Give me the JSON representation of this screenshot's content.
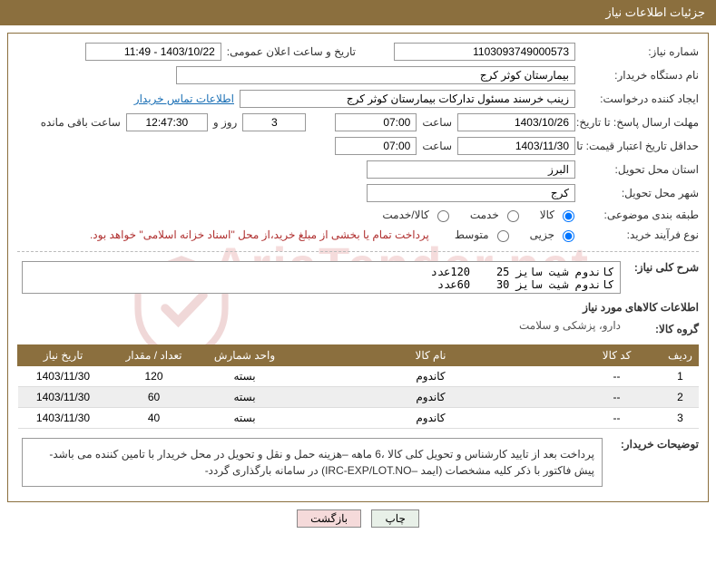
{
  "header": {
    "title": "جزئیات اطلاعات نیاز"
  },
  "fields": {
    "need_number_label": "شماره نیاز:",
    "need_number": "1103093749000573",
    "announce_label": "تاریخ و ساعت اعلان عمومی:",
    "announce_value": "1403/10/22 - 11:49",
    "buyer_org_label": "نام دستگاه خریدار:",
    "buyer_org": "بیمارستان کوثر کرج",
    "requester_label": "ایجاد کننده درخواست:",
    "requester": "زینب خرسند مسئول تدارکات بیمارستان کوثر کرج",
    "contact_link": "اطلاعات تماس خریدار",
    "deadline_send_label": "مهلت ارسال پاسخ: تا تاریخ:",
    "deadline_send_date": "1403/10/26",
    "time_label": "ساعت",
    "deadline_send_time": "07:00",
    "days_label_suffix": "روز و",
    "days_value": "3",
    "countdown": "12:47:30",
    "remaining_label": "ساعت باقی مانده",
    "validity_label": "حداقل تاریخ اعتبار قیمت: تا تاریخ:",
    "validity_date": "1403/11/30",
    "validity_time": "07:00",
    "province_label": "استان محل تحویل:",
    "province": "البرز",
    "city_label": "شهر محل تحویل:",
    "city": "کرج",
    "category_label": "طبقه بندی موضوعی:",
    "cat_goods": "کالا",
    "cat_service": "خدمت",
    "cat_both": "کالا/خدمت",
    "purchase_type_label": "نوع فرآیند خرید:",
    "pt_minor": "جزیی",
    "pt_medium": "متوسط",
    "payment_note": "پرداخت تمام یا بخشی از مبلغ خرید،از محل \"اسناد خزانه اسلامی\" خواهد بود.",
    "summary_label": "شرح کلی نیاز:",
    "summary_text": "کاندوم شیت سایز 25    120عدد\nکاندوم شیت سایز 30    60عدد",
    "items_section_title": "اطلاعات کالاهای مورد نیاز",
    "goods_group_label": "گروه کالا:",
    "goods_group": "دارو، پزشکی و سلامت",
    "buyer_notes_label": "توضیحات خریدار:",
    "buyer_notes": "پرداخت بعد از تایید کارشناس و تحویل کلی کالا ،6 ماهه –هزینه حمل و نقل و تحویل در محل خریدار با تامین کننده می باشد- پیش فاکتور با ذکر کلیه مشخصات (ایمد –IRC-EXP/LOT.NO) در سامانه بارگذاری گردد-"
  },
  "table": {
    "columns": [
      "ردیف",
      "کد کالا",
      "نام کالا",
      "واحد شمارش",
      "تعداد / مقدار",
      "تاریخ نیاز"
    ],
    "rows": [
      [
        "1",
        "--",
        "کاندوم",
        "بسته",
        "120",
        "1403/11/30"
      ],
      [
        "2",
        "--",
        "کاندوم",
        "بسته",
        "60",
        "1403/11/30"
      ],
      [
        "3",
        "--",
        "کاندوم",
        "بسته",
        "40",
        "1403/11/30"
      ]
    ],
    "col_widths": [
      "40px",
      "100px",
      "auto",
      "100px",
      "100px",
      "100px"
    ]
  },
  "buttons": {
    "print": "چاپ",
    "back": "بازگشت"
  },
  "colors": {
    "header_bg": "#8b6f3e",
    "header_fg": "#ffffff",
    "border": "#8b6f3e",
    "link": "#1a6fb5",
    "danger_text": "#b03030",
    "alt_row": "#eeeeee"
  }
}
